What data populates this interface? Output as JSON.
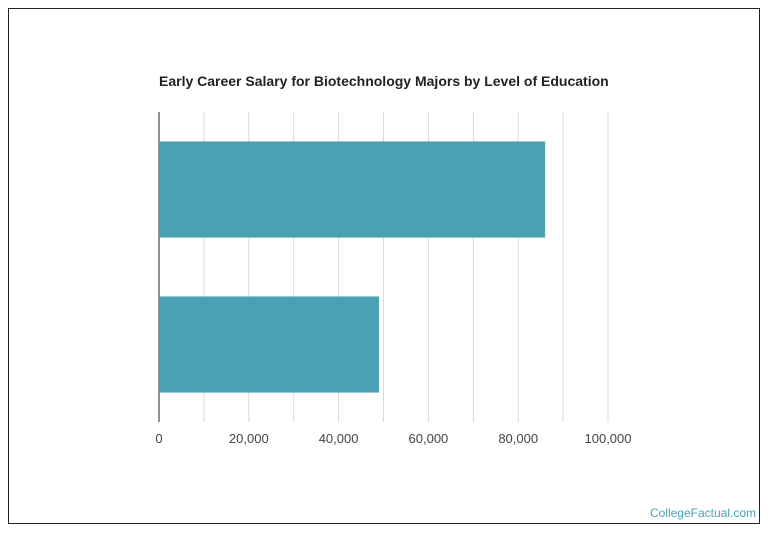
{
  "chart_data": {
    "type": "bar",
    "orientation": "horizontal",
    "title": "Early Career Salary for Biotechnology Majors by Level of Education",
    "categories": [
      "",
      ""
    ],
    "values": [
      86000,
      49000
    ],
    "xlabel": "",
    "ylabel": "",
    "xlim": [
      0,
      100000
    ],
    "x_ticks": [
      0,
      10000,
      20000,
      30000,
      40000,
      50000,
      60000,
      70000,
      80000,
      90000,
      100000
    ],
    "x_tick_labels": [
      "0",
      "20,000",
      "40,000",
      "60,000",
      "80,000",
      "100,000"
    ],
    "x_tick_label_values": [
      0,
      20000,
      40000,
      60000,
      80000,
      100000
    ],
    "grid": true,
    "bar_color": "#4aa1b3",
    "grid_color": "#d9d9d9"
  },
  "footer": {
    "source": "CollegeFactual.com"
  },
  "colors": {
    "watermark": "#4aa0b3"
  }
}
